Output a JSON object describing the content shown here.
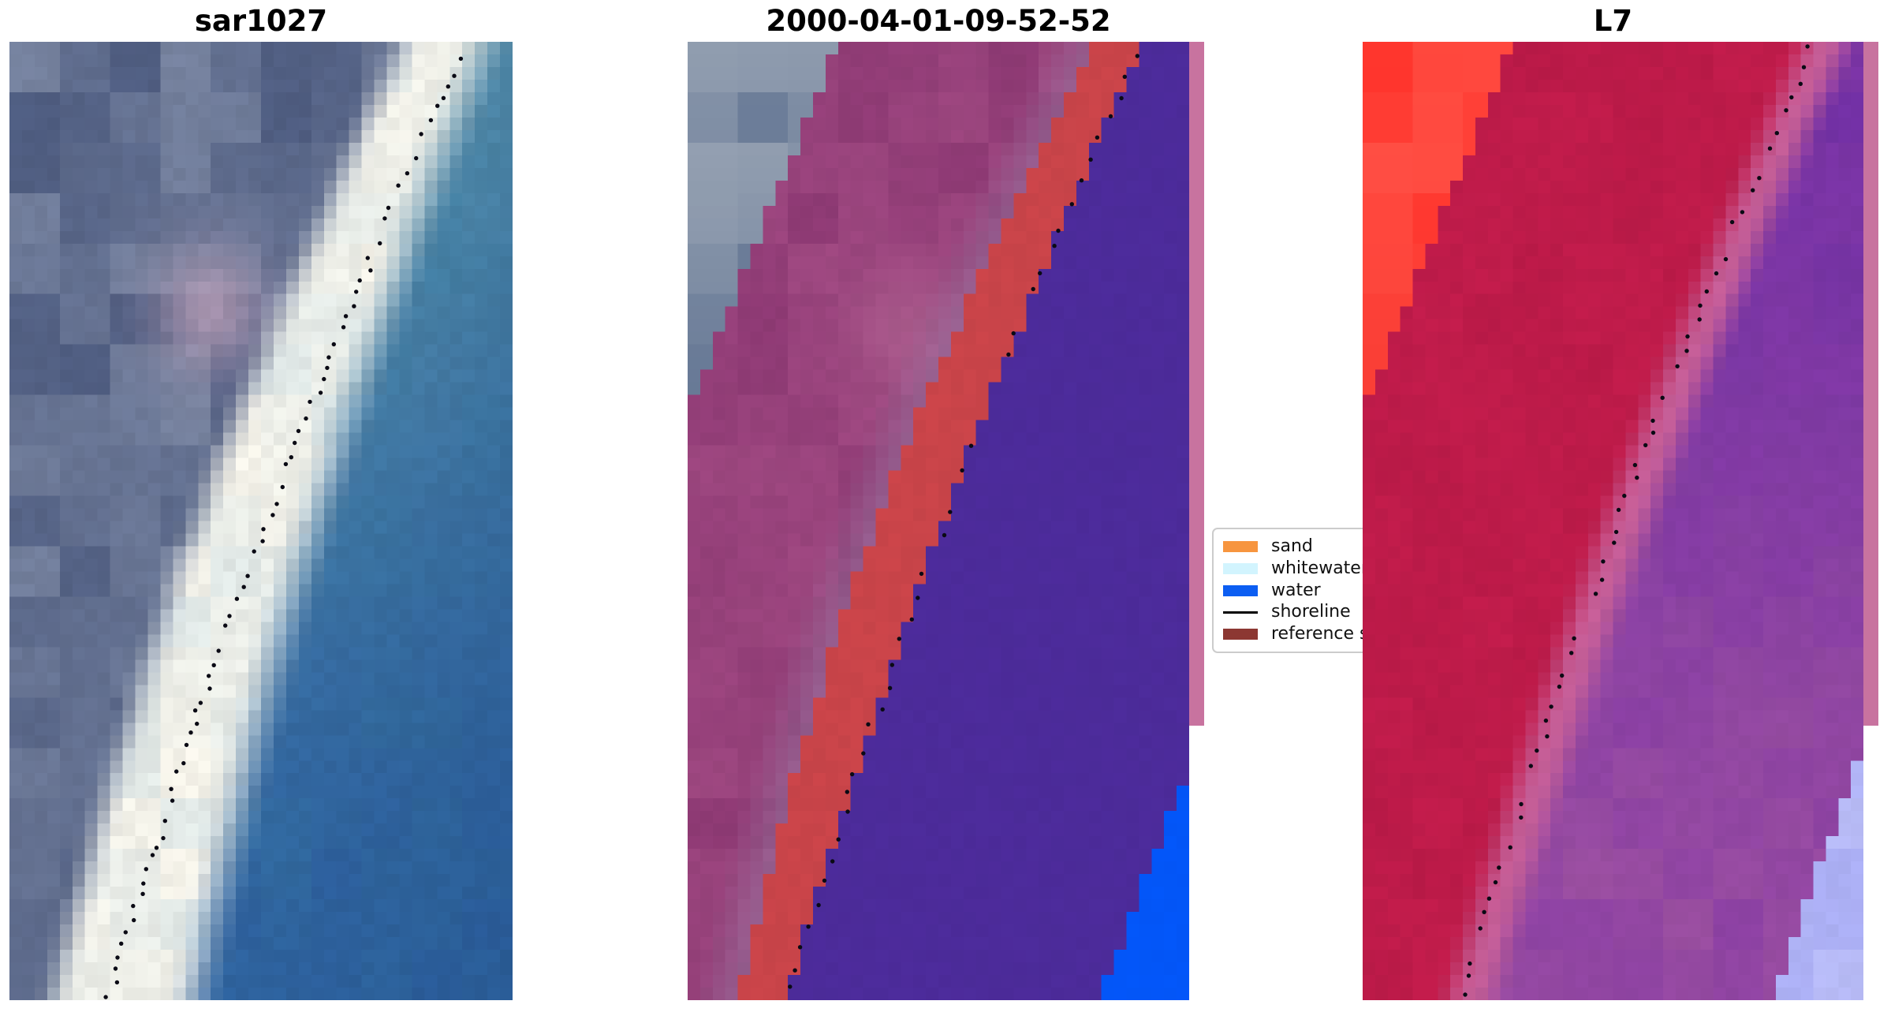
{
  "figure": {
    "background": "#ffffff"
  },
  "legend": {
    "items": [
      {
        "label": "sand",
        "swatch": "patch",
        "color": "#F7953F"
      },
      {
        "label": "whitewater",
        "swatch": "patch",
        "color": "#D2F4FE"
      },
      {
        "label": "water",
        "swatch": "patch",
        "color": "#0C5EF2"
      },
      {
        "label": "shoreline",
        "swatch": "line",
        "color": "#000000"
      },
      {
        "label": "reference sh",
        "swatch": "patch",
        "color": "#8C3732"
      }
    ]
  },
  "chart_data": {
    "type": "heatmap",
    "subtype": "satellite-image-triptych",
    "description": "Three coastal satellite image subplots with a dotted detected shoreline; middle panel shows classified sand/water overlay with reference shoreline band; legend lists classes.",
    "legend_entries": [
      "sand",
      "whitewater",
      "water",
      "shoreline",
      "reference sh"
    ],
    "shoreline_dot_color": "#0A0A14",
    "panels": [
      {
        "title": "sar1027",
        "kind": "sar",
        "dots": {
          "count": 78,
          "radius": 2.7,
          "seed": 11
        },
        "shoreline": {
          "top": 0.905,
          "bottom": 0.195,
          "bow": -0.04
        },
        "foam_left": {
          "top": 0.74,
          "bottom": 0.04,
          "bow": -0.06
        },
        "foam_right": {
          "top": 0.88,
          "bottom": 0.3,
          "bow": -0.05
        },
        "blotch_center": [
          0.4,
          0.28
        ],
        "colors": {
          "land_dark": "#4E5C80",
          "land_light": "#7D89A4",
          "blotch": "#B49BB4",
          "foam": "#F6F3E9",
          "foam_cool": "#DCE6E6",
          "water_top": "#4E86A6",
          "water_mid": "#35789C",
          "water_bottom": "#2D5F9E",
          "water_deep": "#24548E"
        }
      },
      {
        "title": "2000-04-01-09-52-52",
        "kind": "classified",
        "dots": {
          "count": 44,
          "radius": 2.7,
          "seed": 23
        },
        "shoreline": {
          "top": 0.905,
          "bottom": 0.195,
          "bow": -0.04
        },
        "wedge": {
          "top": 0.3,
          "end_t": 0.385
        },
        "band_left": {
          "top": 0.815,
          "bottom": 0.1,
          "bow": -0.08
        },
        "blue_corner": {
          "t_at_right": 0.755,
          "x_at_bottom": 0.82
        },
        "strip": {
          "color": "#C8739F",
          "height_frac": 0.713
        },
        "blotch_center": [
          0.44,
          0.3
        ],
        "colors": {
          "img_slate": "#5E7190",
          "img_light": "#9AA5B5",
          "land": "#8E3A74",
          "land_light": "#A34C84",
          "blotch": "#AF6090",
          "lavender": "#95759F",
          "band": "#C94449",
          "water": "#4C2B9A",
          "blue": "#0356F8"
        }
      },
      {
        "title": "L7",
        "kind": "l7",
        "dots": {
          "count": 60,
          "radius": 2.7,
          "seed": 37
        },
        "shoreline": {
          "top": 0.905,
          "bottom": 0.195,
          "bow": -0.04
        },
        "wedge": {
          "top": 0.3,
          "end_t": 0.385
        },
        "lavender_corner": {
          "t_at_right": 0.73,
          "x_at_bottom": 0.82
        },
        "strip": {
          "color": "#C8739F",
          "height_frac": 0.713
        },
        "colors": {
          "wedge_red": "#F93129",
          "wedge_red_light": "#FB554A",
          "land": "#C11C4B",
          "land_dark": "#B51845",
          "pink": "#C55E97",
          "water_top": "#7130A4",
          "water_bottom": "#9B4FA0",
          "water_var": "#8338A6",
          "lavender": "#A6AAF3",
          "lavender_light": "#C0C3F8"
        }
      }
    ]
  }
}
